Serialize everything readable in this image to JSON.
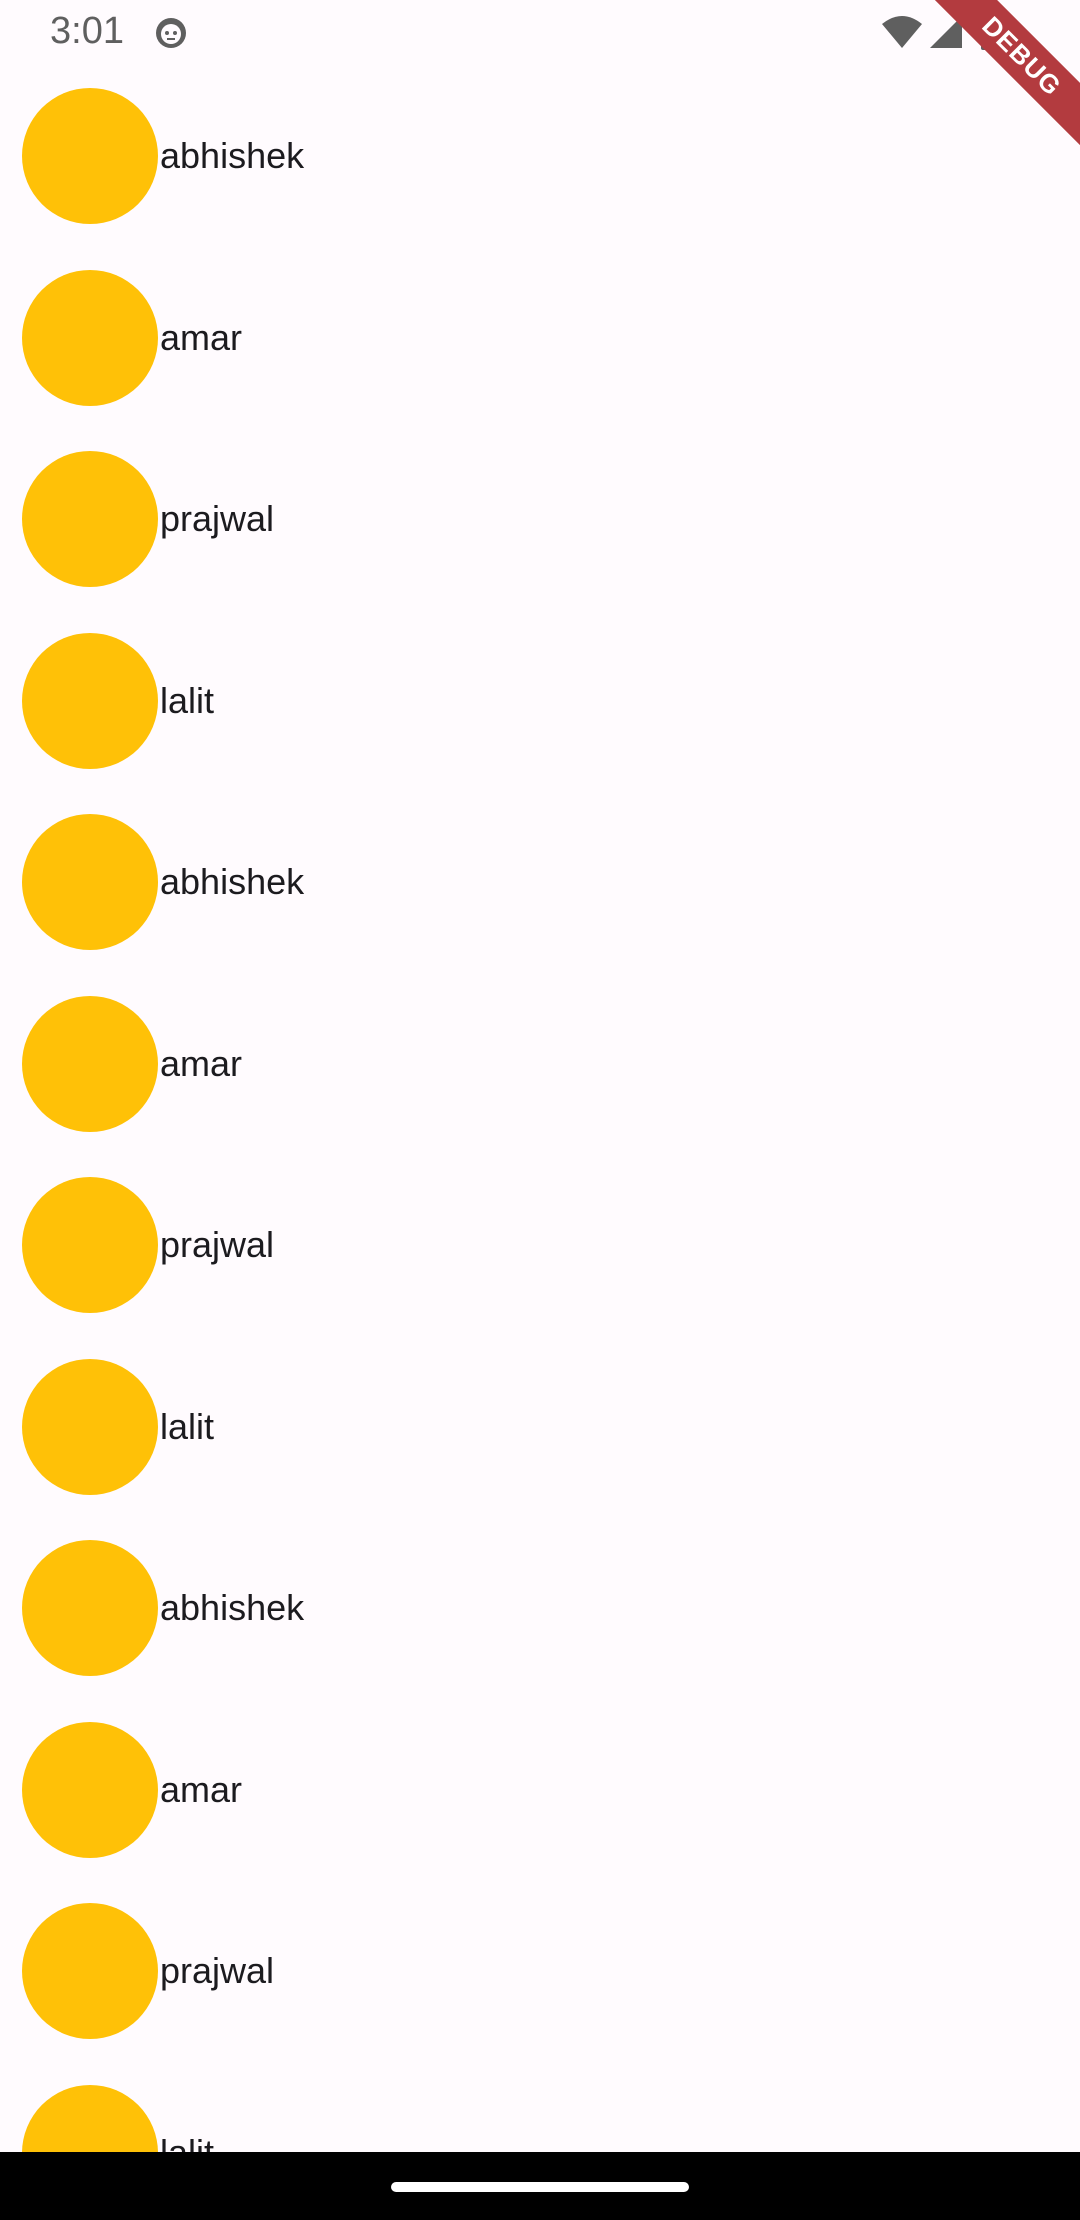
{
  "status_bar": {
    "time": "3:01",
    "icons": [
      "app-notification-icon",
      "wifi-icon",
      "signal-icon",
      "battery-icon"
    ]
  },
  "debug_banner": {
    "label": "DEBUG",
    "color": "#b33b3f"
  },
  "list": {
    "avatar_color": "#ffc107",
    "items": [
      {
        "label": "abhishek"
      },
      {
        "label": "amar"
      },
      {
        "label": "prajwal"
      },
      {
        "label": "lalit"
      },
      {
        "label": "abhishek"
      },
      {
        "label": "amar"
      },
      {
        "label": "prajwal"
      },
      {
        "label": "lalit"
      },
      {
        "label": "abhishek"
      },
      {
        "label": "amar"
      },
      {
        "label": "prajwal"
      },
      {
        "label": "lalit"
      }
    ]
  }
}
